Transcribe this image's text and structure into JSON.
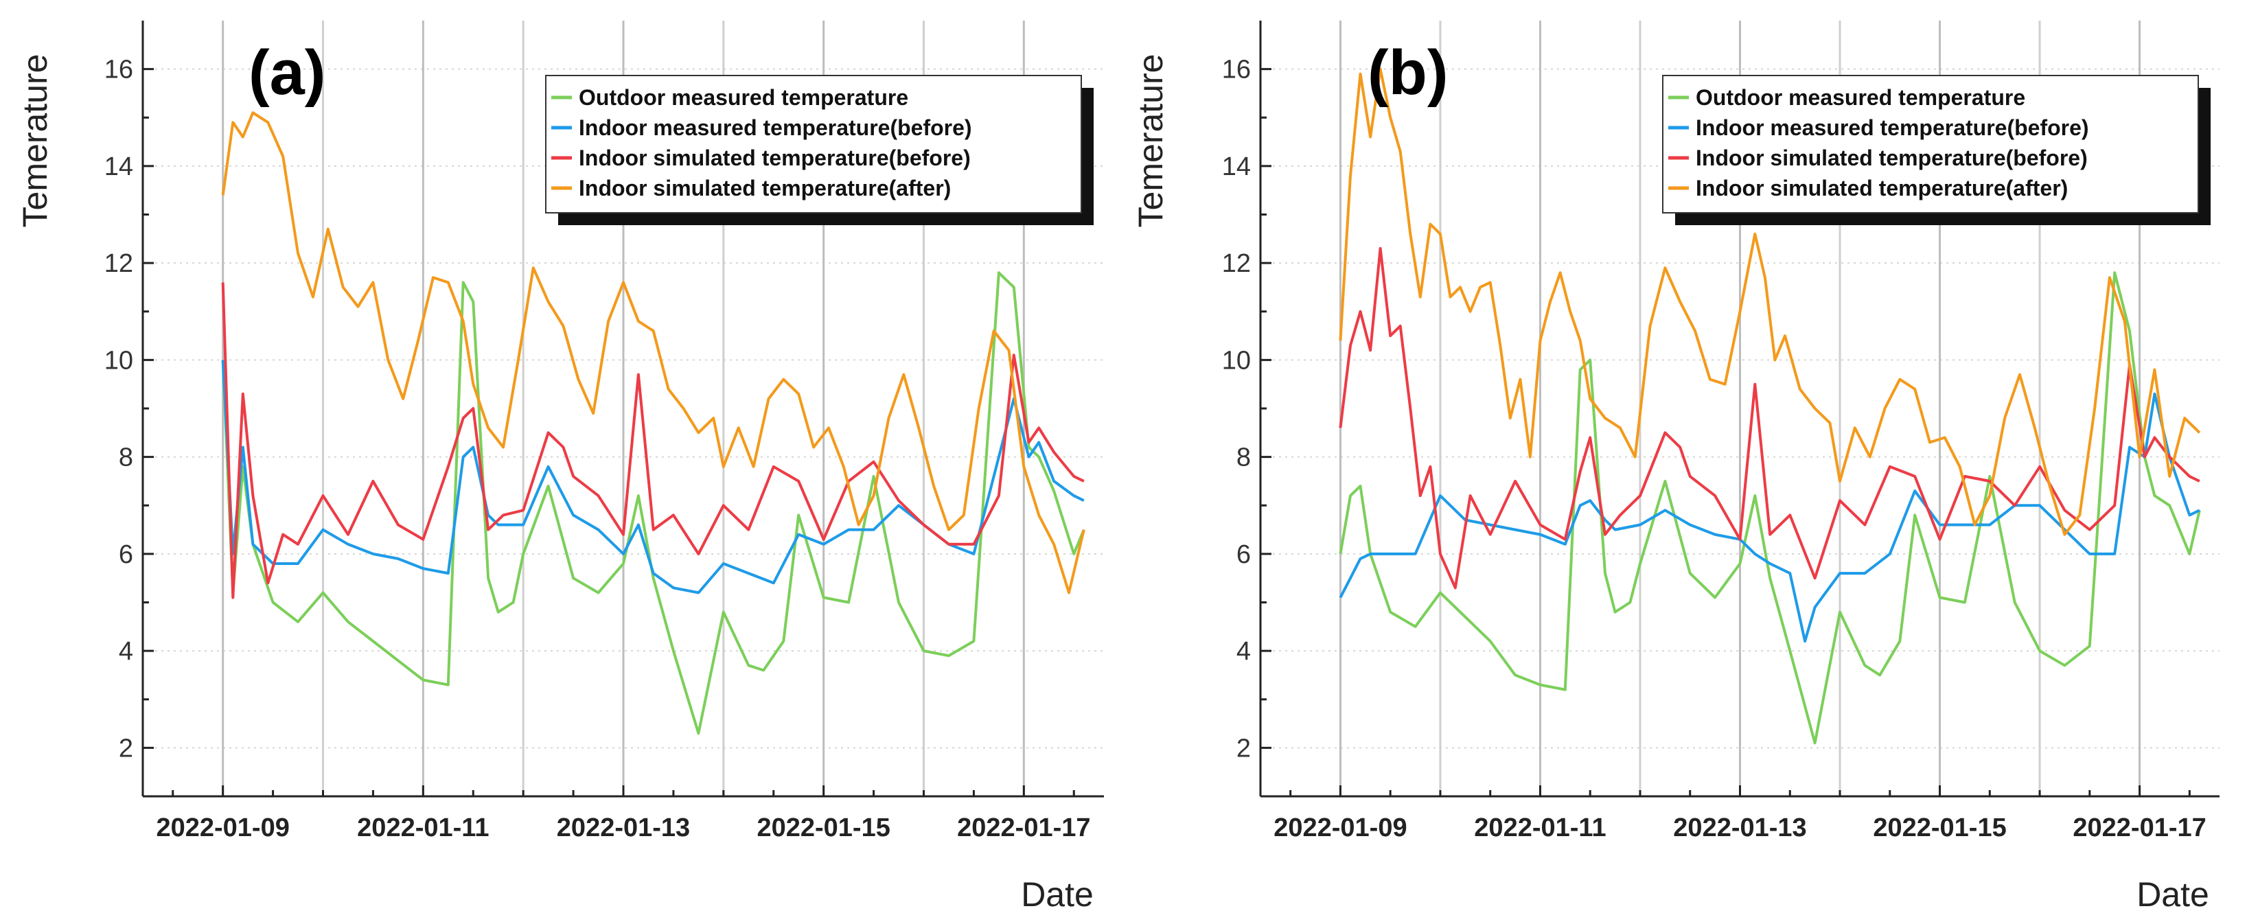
{
  "figure": {
    "ylabel": "Temerature",
    "xlabel": "Date"
  },
  "colors": {
    "Outdoor measured temperature": "#7ccf5a",
    "Indoor measured temperature(before)": "#1e9be8",
    "Indoor simulated temperature(before)": "#ec3c46",
    "Indoor simulated temperature(after)": "#f39a1c"
  },
  "chart_data": [
    {
      "type": "line",
      "panel_label": "(a)",
      "xlabel": "Date",
      "ylabel": "Temerature",
      "ylim": [
        1,
        17
      ],
      "xlim": [
        -1.6,
        17.6
      ],
      "yticks": [
        2,
        4,
        6,
        8,
        10,
        12,
        14,
        16
      ],
      "xticks": [
        "2022-01-09",
        "2022-01-11",
        "2022-01-13",
        "2022-01-15",
        "2022-01-17"
      ],
      "xtick_day_offsets": [
        0,
        4,
        8,
        12,
        16
      ],
      "x_units": "days since 2022-01-08",
      "legend_position": "top-right",
      "series": [
        {
          "name": "Outdoor measured temperature",
          "color": "#7ccf5a",
          "x": [
            0,
            0.2,
            0.4,
            0.6,
            1.0,
            1.5,
            2.0,
            2.5,
            3.0,
            3.5,
            4.0,
            4.5,
            4.8,
            5.0,
            5.3,
            5.5,
            5.8,
            6.0,
            6.5,
            7.0,
            7.5,
            8.0,
            8.3,
            8.6,
            9.0,
            9.5,
            10.0,
            10.5,
            10.8,
            11.2,
            11.5,
            12.0,
            12.5,
            13.0,
            13.5,
            14.0,
            14.5,
            15.0,
            15.5,
            15.8,
            16.1,
            16.3,
            16.6,
            17.0,
            17.2
          ],
          "values": [
            10.0,
            5.2,
            7.8,
            6.2,
            5.0,
            4.6,
            5.2,
            4.6,
            4.2,
            3.8,
            3.4,
            3.3,
            11.6,
            11.2,
            5.5,
            4.8,
            5.0,
            6.0,
            7.4,
            5.5,
            5.2,
            5.8,
            7.2,
            5.5,
            4.0,
            2.3,
            4.8,
            3.7,
            3.6,
            4.2,
            6.8,
            5.1,
            5.0,
            7.6,
            5.0,
            4.0,
            3.9,
            4.2,
            11.8,
            11.5,
            8.2,
            8.0,
            7.3,
            6.0,
            6.5
          ]
        },
        {
          "name": "Indoor measured temperature(before)",
          "color": "#1e9be8",
          "x": [
            0,
            0.2,
            0.4,
            0.6,
            1.0,
            1.5,
            2.0,
            2.5,
            3.0,
            3.5,
            4.0,
            4.5,
            4.8,
            5.0,
            5.3,
            5.5,
            6.0,
            6.5,
            7.0,
            7.5,
            8.0,
            8.3,
            8.6,
            9.0,
            9.5,
            10.0,
            10.5,
            11.0,
            11.5,
            12.0,
            12.5,
            13.0,
            13.5,
            14.0,
            14.5,
            15.0,
            15.5,
            15.8,
            16.1,
            16.3,
            16.6,
            17.0,
            17.2
          ],
          "values": [
            10.0,
            6.0,
            8.2,
            6.2,
            5.8,
            5.8,
            6.5,
            6.2,
            6.0,
            5.9,
            5.7,
            5.6,
            8.0,
            8.2,
            6.8,
            6.6,
            6.6,
            7.8,
            6.8,
            6.5,
            6.0,
            6.6,
            5.6,
            5.3,
            5.2,
            5.8,
            5.6,
            5.4,
            6.4,
            6.2,
            6.5,
            6.5,
            7.0,
            6.6,
            6.2,
            6.0,
            8.0,
            9.2,
            8.0,
            8.3,
            7.5,
            7.2,
            7.1
          ]
        },
        {
          "name": "Indoor simulated temperature(before)",
          "color": "#ec3c46",
          "x": [
            0,
            0.2,
            0.4,
            0.6,
            0.9,
            1.2,
            1.5,
            2.0,
            2.5,
            3.0,
            3.5,
            4.0,
            4.5,
            4.8,
            5.0,
            5.3,
            5.6,
            6.0,
            6.5,
            6.8,
            7.0,
            7.5,
            8.0,
            8.3,
            8.6,
            9.0,
            9.5,
            10.0,
            10.5,
            11.0,
            11.5,
            12.0,
            12.5,
            13.0,
            13.5,
            14.0,
            14.5,
            15.0,
            15.5,
            15.8,
            16.1,
            16.3,
            16.6,
            17.0,
            17.2
          ],
          "values": [
            11.6,
            5.1,
            9.3,
            7.2,
            5.4,
            6.4,
            6.2,
            7.2,
            6.4,
            7.5,
            6.6,
            6.3,
            7.8,
            8.8,
            9.0,
            6.5,
            6.8,
            6.9,
            8.5,
            8.2,
            7.6,
            7.2,
            6.4,
            9.7,
            6.5,
            6.8,
            6.0,
            7.0,
            6.5,
            7.8,
            7.5,
            6.3,
            7.5,
            7.9,
            7.1,
            6.6,
            6.2,
            6.2,
            7.2,
            10.1,
            8.3,
            8.6,
            8.1,
            7.6,
            7.5
          ]
        },
        {
          "name": "Indoor simulated temperature(after)",
          "color": "#f39a1c",
          "x": [
            0,
            0.2,
            0.4,
            0.6,
            0.9,
            1.2,
            1.5,
            1.8,
            2.1,
            2.4,
            2.7,
            3.0,
            3.3,
            3.6,
            3.9,
            4.2,
            4.5,
            4.8,
            5.0,
            5.3,
            5.6,
            5.9,
            6.2,
            6.5,
            6.8,
            7.1,
            7.4,
            7.7,
            8.0,
            8.3,
            8.6,
            8.9,
            9.2,
            9.5,
            9.8,
            10.0,
            10.3,
            10.6,
            10.9,
            11.2,
            11.5,
            11.8,
            12.1,
            12.4,
            12.7,
            13.0,
            13.3,
            13.6,
            13.9,
            14.2,
            14.5,
            14.8,
            15.1,
            15.4,
            15.7,
            16.0,
            16.3,
            16.6,
            16.9,
            17.2
          ],
          "values": [
            13.4,
            14.9,
            14.6,
            15.1,
            14.9,
            14.2,
            12.2,
            11.3,
            12.7,
            11.5,
            11.1,
            11.6,
            10.0,
            9.2,
            10.4,
            11.7,
            11.6,
            10.8,
            9.5,
            8.6,
            8.2,
            10.0,
            11.9,
            11.2,
            10.7,
            9.6,
            8.9,
            10.8,
            11.6,
            10.8,
            10.6,
            9.4,
            9.0,
            8.5,
            8.8,
            7.8,
            8.6,
            7.8,
            9.2,
            9.6,
            9.3,
            8.2,
            8.6,
            7.8,
            6.6,
            7.2,
            8.8,
            9.7,
            8.6,
            7.4,
            6.5,
            6.8,
            9.0,
            10.6,
            10.2,
            7.8,
            6.8,
            6.2,
            5.2,
            6.5
          ]
        }
      ]
    },
    {
      "type": "line",
      "panel_label": "(b)",
      "xlabel": "Date",
      "ylabel": "Temerature",
      "ylim": [
        1,
        17
      ],
      "xlim": [
        -1.6,
        17.6
      ],
      "yticks": [
        2,
        4,
        6,
        8,
        10,
        12,
        14,
        16
      ],
      "xticks": [
        "2022-01-09",
        "2022-01-11",
        "2022-01-13",
        "2022-01-15",
        "2022-01-17"
      ],
      "xtick_day_offsets": [
        0,
        4,
        8,
        12,
        16
      ],
      "x_units": "days since 2022-01-08",
      "legend_position": "top-right",
      "series": [
        {
          "name": "Outdoor measured temperature",
          "color": "#7ccf5a",
          "x": [
            0,
            0.2,
            0.4,
            0.6,
            1.0,
            1.5,
            2.0,
            2.5,
            3.0,
            3.5,
            4.0,
            4.5,
            4.8,
            5.0,
            5.3,
            5.5,
            5.8,
            6.0,
            6.5,
            7.0,
            7.5,
            8.0,
            8.3,
            8.6,
            9.0,
            9.5,
            10.0,
            10.5,
            10.8,
            11.2,
            11.5,
            12.0,
            12.5,
            13.0,
            13.5,
            14.0,
            14.5,
            15.0,
            15.5,
            15.8,
            16.1,
            16.3,
            16.6,
            17.0,
            17.2
          ],
          "values": [
            6.0,
            7.2,
            7.4,
            6.0,
            4.8,
            4.5,
            5.2,
            4.7,
            4.2,
            3.5,
            3.3,
            3.2,
            9.8,
            10.0,
            5.6,
            4.8,
            5.0,
            5.8,
            7.5,
            5.6,
            5.1,
            5.8,
            7.2,
            5.5,
            4.0,
            2.1,
            4.8,
            3.7,
            3.5,
            4.2,
            6.8,
            5.1,
            5.0,
            7.6,
            5.0,
            4.0,
            3.7,
            4.1,
            11.8,
            10.6,
            8.0,
            7.2,
            7.0,
            6.0,
            6.9
          ]
        },
        {
          "name": "Indoor measured temperature(before)",
          "color": "#1e9be8",
          "x": [
            0,
            0.2,
            0.4,
            0.6,
            1.0,
            1.5,
            2.0,
            2.5,
            3.0,
            3.5,
            4.0,
            4.5,
            4.8,
            5.0,
            5.3,
            5.5,
            6.0,
            6.5,
            7.0,
            7.5,
            8.0,
            8.3,
            8.6,
            9.0,
            9.3,
            9.5,
            10.0,
            10.5,
            11.0,
            11.5,
            12.0,
            12.5,
            13.0,
            13.5,
            14.0,
            14.5,
            15.0,
            15.5,
            15.8,
            16.1,
            16.3,
            16.6,
            17.0,
            17.2
          ],
          "values": [
            5.1,
            5.5,
            5.9,
            6.0,
            6.0,
            6.0,
            7.2,
            6.7,
            6.6,
            6.5,
            6.4,
            6.2,
            7.0,
            7.1,
            6.7,
            6.5,
            6.6,
            6.9,
            6.6,
            6.4,
            6.3,
            6.0,
            5.8,
            5.6,
            4.2,
            4.9,
            5.6,
            5.6,
            6.0,
            7.3,
            6.6,
            6.6,
            6.6,
            7.0,
            7.0,
            6.5,
            6.0,
            6.0,
            8.2,
            8.0,
            9.3,
            8.0,
            6.8,
            6.9
          ]
        },
        {
          "name": "Indoor simulated temperature(before)",
          "color": "#ec3c46",
          "x": [
            0,
            0.2,
            0.4,
            0.6,
            0.8,
            1.0,
            1.2,
            1.4,
            1.6,
            1.8,
            2.0,
            2.3,
            2.6,
            3.0,
            3.5,
            4.0,
            4.5,
            4.8,
            5.0,
            5.3,
            5.6,
            6.0,
            6.5,
            6.8,
            7.0,
            7.5,
            8.0,
            8.3,
            8.6,
            9.0,
            9.5,
            10.0,
            10.5,
            11.0,
            11.5,
            12.0,
            12.5,
            13.0,
            13.5,
            14.0,
            14.5,
            15.0,
            15.5,
            15.8,
            16.1,
            16.3,
            16.6,
            17.0,
            17.2
          ],
          "values": [
            8.6,
            10.3,
            11.0,
            10.2,
            12.3,
            10.5,
            10.7,
            9.0,
            7.2,
            7.8,
            6.0,
            5.3,
            7.2,
            6.4,
            7.5,
            6.6,
            6.3,
            7.7,
            8.4,
            6.4,
            6.8,
            7.2,
            8.5,
            8.2,
            7.6,
            7.2,
            6.3,
            9.5,
            6.4,
            6.8,
            5.5,
            7.1,
            6.6,
            7.8,
            7.6,
            6.3,
            7.6,
            7.5,
            7.0,
            7.8,
            6.9,
            6.5,
            7.0,
            9.9,
            8.0,
            8.4,
            8.0,
            7.6,
            7.5
          ]
        },
        {
          "name": "Indoor simulated temperature(after)",
          "color": "#f39a1c",
          "x": [
            0,
            0.2,
            0.4,
            0.6,
            0.8,
            1.0,
            1.2,
            1.4,
            1.6,
            1.8,
            2.0,
            2.2,
            2.4,
            2.6,
            2.8,
            3.0,
            3.2,
            3.4,
            3.6,
            3.8,
            4.0,
            4.2,
            4.4,
            4.6,
            4.8,
            5.0,
            5.3,
            5.6,
            5.9,
            6.2,
            6.5,
            6.8,
            7.1,
            7.4,
            7.7,
            8.0,
            8.3,
            8.5,
            8.7,
            8.9,
            9.2,
            9.5,
            9.8,
            10.0,
            10.3,
            10.6,
            10.9,
            11.2,
            11.5,
            11.8,
            12.1,
            12.4,
            12.7,
            13.0,
            13.3,
            13.6,
            13.9,
            14.2,
            14.5,
            14.8,
            15.1,
            15.4,
            15.7,
            16.0,
            16.3,
            16.6,
            16.9,
            17.2
          ],
          "values": [
            10.4,
            13.8,
            15.9,
            14.6,
            16.0,
            15.0,
            14.3,
            12.6,
            11.3,
            12.8,
            12.6,
            11.3,
            11.5,
            11.0,
            11.5,
            11.6,
            10.3,
            8.8,
            9.6,
            8.0,
            10.4,
            11.2,
            11.8,
            11.0,
            10.4,
            9.2,
            8.8,
            8.6,
            8.0,
            10.7,
            11.9,
            11.2,
            10.6,
            9.6,
            9.5,
            11.0,
            12.6,
            11.7,
            10.0,
            10.5,
            9.4,
            9.0,
            8.7,
            7.5,
            8.6,
            8.0,
            9.0,
            9.6,
            9.4,
            8.3,
            8.4,
            7.8,
            6.6,
            7.2,
            8.8,
            9.7,
            8.6,
            7.4,
            6.4,
            6.8,
            9.0,
            11.7,
            10.8,
            8.0,
            9.8,
            7.6,
            8.8,
            8.5
          ]
        }
      ]
    }
  ],
  "legend": {
    "entries": [
      "Outdoor measured temperature",
      "Indoor measured temperature(before)",
      "Indoor simulated temperature(before)",
      "Indoor simulated temperature(after)"
    ]
  }
}
